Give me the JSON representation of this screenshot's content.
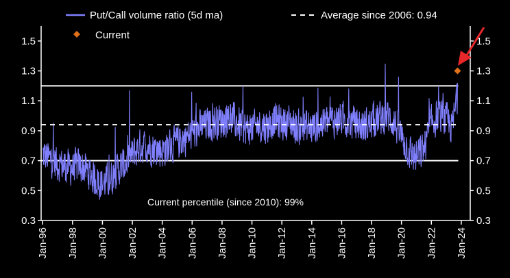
{
  "chart_data": {
    "type": "line",
    "x_range": [
      "Jan-96",
      "Jan-24"
    ],
    "ylim": [
      0.3,
      1.6
    ],
    "y_ticks": [
      "1.5",
      "1.3",
      "1.1",
      "0.9",
      "0.7",
      "0.5",
      "0.3"
    ],
    "y_tick_values": [
      1.5,
      1.3,
      1.1,
      0.9,
      0.7,
      0.5,
      0.3
    ],
    "x_ticks": [
      "Jan-96",
      "Jan-98",
      "Jan-00",
      "Jan-02",
      "Jan-04",
      "Jan-06",
      "Jan-08",
      "Jan-10",
      "Jan-12",
      "Jan-14",
      "Jan-16",
      "Jan-18",
      "Jan-20",
      "Jan-22",
      "Jan-24"
    ],
    "x_tick_years": [
      1996,
      1998,
      2000,
      2002,
      2004,
      2006,
      2008,
      2010,
      2012,
      2014,
      2016,
      2018,
      2020,
      2022,
      2024
    ],
    "series": [
      {
        "name": "Put/Call volume ratio (5d ma)",
        "color": "#8080ff",
        "trend_points": [
          [
            1996.0,
            0.74
          ],
          [
            1996.5,
            0.71
          ],
          [
            1997.0,
            0.68
          ],
          [
            1997.5,
            0.66
          ],
          [
            1998.0,
            0.65
          ],
          [
            1998.5,
            0.67
          ],
          [
            1999.0,
            0.63
          ],
          [
            1999.5,
            0.58
          ],
          [
            2000.0,
            0.55
          ],
          [
            2000.5,
            0.57
          ],
          [
            2001.0,
            0.64
          ],
          [
            2001.5,
            0.68
          ],
          [
            2002.0,
            0.74
          ],
          [
            2002.5,
            0.79
          ],
          [
            2003.0,
            0.8
          ],
          [
            2003.5,
            0.78
          ],
          [
            2004.0,
            0.77
          ],
          [
            2004.5,
            0.8
          ],
          [
            2005.0,
            0.82
          ],
          [
            2005.5,
            0.85
          ],
          [
            2006.0,
            0.88
          ],
          [
            2006.5,
            0.92
          ],
          [
            2007.0,
            0.94
          ],
          [
            2007.5,
            0.96
          ],
          [
            2008.0,
            0.97
          ],
          [
            2008.5,
            0.99
          ],
          [
            2009.0,
            0.95
          ],
          [
            2009.5,
            0.92
          ],
          [
            2010.0,
            0.91
          ],
          [
            2010.5,
            0.94
          ],
          [
            2011.0,
            0.93
          ],
          [
            2011.5,
            0.97
          ],
          [
            2012.0,
            0.95
          ],
          [
            2012.5,
            0.96
          ],
          [
            2013.0,
            0.92
          ],
          [
            2013.5,
            0.93
          ],
          [
            2014.0,
            0.92
          ],
          [
            2014.5,
            0.94
          ],
          [
            2015.0,
            0.96
          ],
          [
            2015.5,
            0.97
          ],
          [
            2016.0,
            0.98
          ],
          [
            2016.5,
            0.96
          ],
          [
            2017.0,
            0.94
          ],
          [
            2017.5,
            0.93
          ],
          [
            2018.0,
            0.95
          ],
          [
            2018.5,
            0.98
          ],
          [
            2019.0,
            1.0
          ],
          [
            2019.5,
            0.96
          ],
          [
            2020.0,
            0.86
          ],
          [
            2020.5,
            0.76
          ],
          [
            2021.0,
            0.72
          ],
          [
            2021.5,
            0.78
          ],
          [
            2022.0,
            0.95
          ],
          [
            2022.5,
            1.0
          ],
          [
            2023.0,
            0.97
          ],
          [
            2023.4,
            0.92
          ],
          [
            2023.75,
            1.14
          ]
        ]
      },
      {
        "name": "Average since 2006: 0.94",
        "value": 0.94,
        "color": "#ffffff",
        "style": "dashed"
      },
      {
        "name": "Current",
        "x": 2023.75,
        "value": 1.3,
        "color": "#e0701a",
        "marker": "diamond"
      }
    ],
    "bands": [
      1.2,
      0.7
    ],
    "annotation": "Current percentile (since 2010): 99%",
    "legend_position": "top",
    "grid": false
  }
}
